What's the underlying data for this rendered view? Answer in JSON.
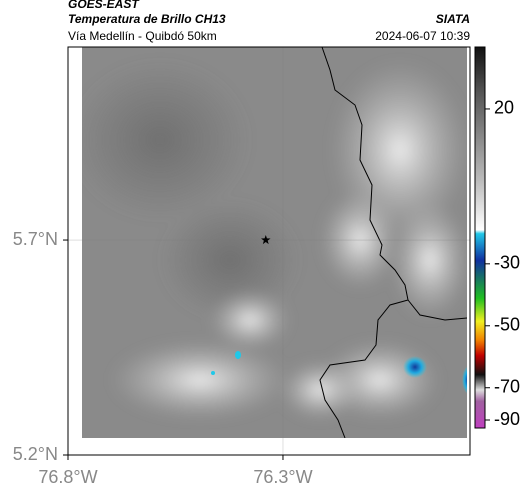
{
  "header": {
    "title": "GOES-EAST",
    "subtitle": "Temperatura de Brillo CH13",
    "source": "SIATA",
    "location": "Vía Medellín - Quibdó 50km",
    "datetime": "2024-06-07 10:39"
  },
  "map": {
    "lon_range": [
      -76.8,
      -75.865
    ],
    "lat_range": [
      5.2,
      6.149
    ],
    "lat_ticks": [
      {
        "value": 5.7,
        "label": "5.7°N"
      },
      {
        "value": 5.2,
        "label": "5.2°N"
      }
    ],
    "lon_ticks": [
      {
        "value": -76.8,
        "label": "76.8°W"
      },
      {
        "value": -76.3,
        "label": "76.3°W"
      }
    ],
    "marker": {
      "lon": -76.34,
      "lat": 5.7
    }
  },
  "colorbar": {
    "range": [
      40,
      -83
    ],
    "ticks": [
      20,
      -30,
      -50,
      -70,
      -90
    ]
  }
}
